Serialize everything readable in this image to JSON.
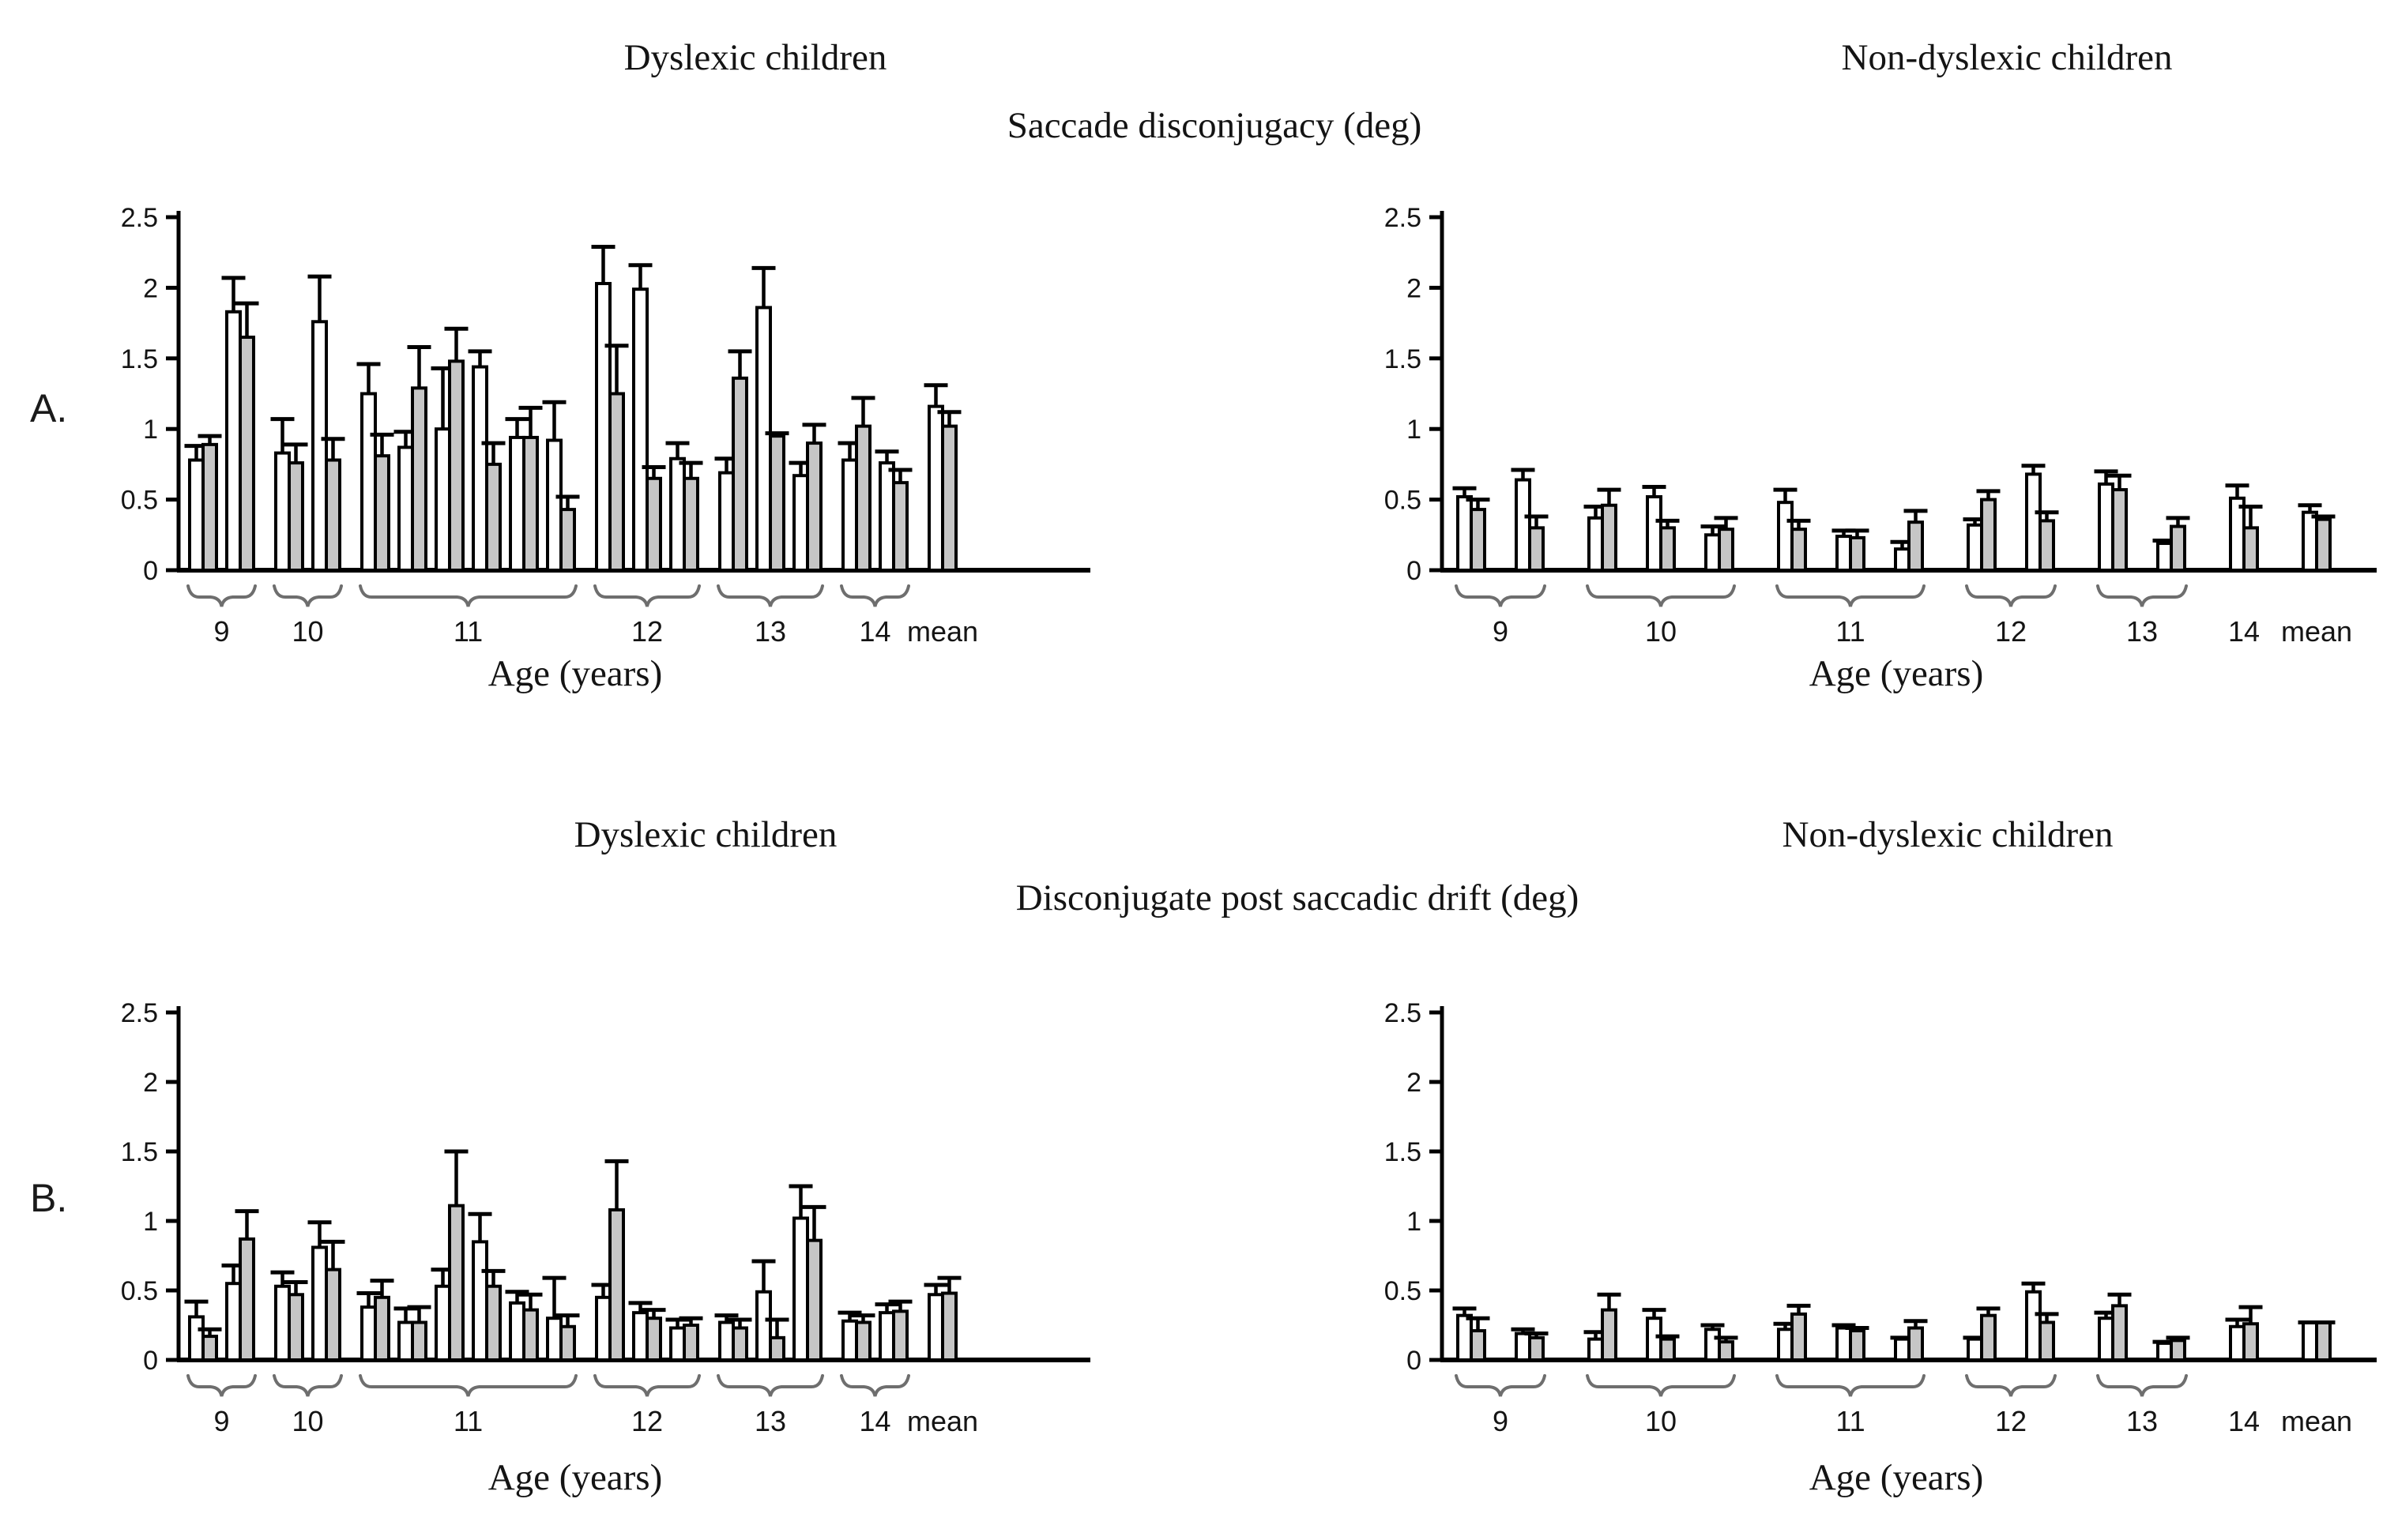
{
  "titles": {
    "panel_a": "A.",
    "panel_b": "B.",
    "row_a_left": "Dyslexic children",
    "row_a_measure": "Saccade disconjugacy (deg)",
    "row_a_right": "Non-dyslexic children",
    "row_b_left": "Dyslexic children",
    "row_b_measure": "Disconjugate post saccadic drift (deg)",
    "row_b_right": "Non-dyslexic children"
  },
  "colors": {
    "bar_white": "#ffffff",
    "bar_gray": "#c6c6c6",
    "stroke": "#000000",
    "brace": "#6e6e6e",
    "text": "#141414"
  },
  "chart_data": [
    {
      "id": "saccade-disconjugacy-dyslexic",
      "type": "bar",
      "row": "A",
      "side": "left",
      "title": "Dyslexic children",
      "measure": "Saccade disconjugacy (deg)",
      "xlabel": "Age (years)",
      "ylim": [
        0,
        2.5
      ],
      "yticks": [
        "0",
        "0.5",
        "1",
        "1.5",
        "2",
        "2.5"
      ],
      "pair_format": "[white_value, white_err, gray_value, gray_err] (deg)",
      "groups": [
        {
          "label": "9",
          "brace": true,
          "pairs": [
            [
              0.78,
              0.1,
              0.89,
              0.06
            ],
            [
              1.83,
              0.24,
              1.65,
              0.24
            ]
          ]
        },
        {
          "label": "10",
          "brace": true,
          "pairs": [
            [
              0.83,
              0.24,
              0.76,
              0.13
            ],
            [
              1.76,
              0.32,
              0.78,
              0.15
            ]
          ]
        },
        {
          "label": "11",
          "brace": true,
          "pairs": [
            [
              1.25,
              0.21,
              0.81,
              0.15
            ],
            [
              0.87,
              0.11,
              1.29,
              0.29
            ],
            [
              1.0,
              0.43,
              1.48,
              0.23
            ],
            [
              1.44,
              0.11,
              0.75,
              0.15
            ],
            [
              0.94,
              0.13,
              0.94,
              0.21
            ],
            [
              0.92,
              0.27,
              0.43,
              0.09
            ]
          ]
        },
        {
          "label": "12",
          "brace": true,
          "pairs": [
            [
              2.03,
              0.26,
              1.25,
              0.34
            ],
            [
              1.99,
              0.17,
              0.65,
              0.08
            ],
            [
              0.79,
              0.11,
              0.65,
              0.11
            ]
          ]
        },
        {
          "label": "13",
          "brace": true,
          "pairs": [
            [
              0.69,
              0.1,
              1.36,
              0.19
            ],
            [
              1.86,
              0.28,
              0.95,
              0.02
            ],
            [
              0.67,
              0.09,
              0.9,
              0.13
            ]
          ]
        },
        {
          "label": "14",
          "brace": true,
          "pairs": [
            [
              0.78,
              0.12,
              1.02,
              0.2
            ],
            [
              0.76,
              0.08,
              0.62,
              0.09
            ]
          ]
        },
        {
          "label": "mean",
          "brace": false,
          "pairs": [
            [
              1.16,
              0.15,
              1.02,
              0.1
            ]
          ]
        }
      ]
    },
    {
      "id": "saccade-disconjugacy-nondyslexic",
      "type": "bar",
      "row": "A",
      "side": "right",
      "title": "Non-dyslexic children",
      "measure": "Saccade disconjugacy (deg)",
      "xlabel": "Age (years)",
      "ylim": [
        0,
        2.5
      ],
      "yticks": [
        "0",
        "0.5",
        "1",
        "1.5",
        "2",
        "2.5"
      ],
      "pair_format": "[white_value, white_err, gray_value, gray_err] (deg)",
      "groups": [
        {
          "label": "9",
          "brace": true,
          "pairs": [
            [
              0.52,
              0.06,
              0.43,
              0.07
            ],
            [
              0.64,
              0.07,
              0.3,
              0.08
            ]
          ]
        },
        {
          "label": "10",
          "brace": true,
          "pairs": [
            [
              0.37,
              0.08,
              0.46,
              0.11
            ],
            [
              0.52,
              0.07,
              0.3,
              0.05
            ],
            [
              0.25,
              0.06,
              0.29,
              0.08
            ]
          ]
        },
        {
          "label": "11",
          "brace": true,
          "pairs": [
            [
              0.48,
              0.09,
              0.29,
              0.06
            ],
            [
              0.24,
              0.04,
              0.23,
              0.05
            ],
            [
              0.15,
              0.05,
              0.34,
              0.08
            ]
          ]
        },
        {
          "label": "12",
          "brace": true,
          "pairs": [
            [
              0.32,
              0.04,
              0.5,
              0.06
            ],
            [
              0.68,
              0.06,
              0.35,
              0.06
            ]
          ]
        },
        {
          "label": "13",
          "brace": true,
          "pairs": [
            [
              0.61,
              0.09,
              0.57,
              0.1
            ],
            [
              0.19,
              0.02,
              0.31,
              0.06
            ]
          ]
        },
        {
          "label": "14",
          "brace": false,
          "pairs": [
            [
              0.51,
              0.09,
              0.3,
              0.15
            ]
          ]
        },
        {
          "label": "mean",
          "brace": false,
          "pairs": [
            [
              0.41,
              0.05,
              0.36,
              0.02
            ]
          ]
        }
      ]
    },
    {
      "id": "postsaccadic-drift-dyslexic",
      "type": "bar",
      "row": "B",
      "side": "left",
      "title": "Dyslexic children",
      "measure": "Disconjugate post saccadic drift (deg)",
      "xlabel": "Age (years)",
      "ylim": [
        0,
        2.5
      ],
      "yticks": [
        "0",
        "0.5",
        "1",
        "1.5",
        "2",
        "2.5"
      ],
      "pair_format": "[white_value, white_err, gray_value, gray_err] (deg)",
      "groups": [
        {
          "label": "9",
          "brace": true,
          "pairs": [
            [
              0.31,
              0.11,
              0.17,
              0.05
            ],
            [
              0.55,
              0.13,
              0.87,
              0.2
            ]
          ]
        },
        {
          "label": "10",
          "brace": true,
          "pairs": [
            [
              0.53,
              0.1,
              0.47,
              0.09
            ],
            [
              0.81,
              0.18,
              0.65,
              0.2
            ]
          ]
        },
        {
          "label": "11",
          "brace": true,
          "pairs": [
            [
              0.38,
              0.1,
              0.45,
              0.12
            ],
            [
              0.27,
              0.1,
              0.27,
              0.11
            ],
            [
              0.53,
              0.12,
              1.11,
              0.39
            ],
            [
              0.85,
              0.2,
              0.53,
              0.11
            ],
            [
              0.41,
              0.08,
              0.36,
              0.11
            ],
            [
              0.3,
              0.29,
              0.24,
              0.08
            ]
          ]
        },
        {
          "label": "12",
          "brace": true,
          "pairs": [
            [
              0.45,
              0.09,
              1.08,
              0.35
            ],
            [
              0.34,
              0.07,
              0.3,
              0.06
            ],
            [
              0.23,
              0.06,
              0.25,
              0.05
            ]
          ]
        },
        {
          "label": "13",
          "brace": true,
          "pairs": [
            [
              0.27,
              0.05,
              0.23,
              0.06
            ],
            [
              0.49,
              0.22,
              0.16,
              0.13
            ],
            [
              1.02,
              0.23,
              0.86,
              0.24
            ]
          ]
        },
        {
          "label": "14",
          "brace": true,
          "pairs": [
            [
              0.28,
              0.06,
              0.27,
              0.05
            ],
            [
              0.34,
              0.06,
              0.35,
              0.07
            ]
          ]
        },
        {
          "label": "mean",
          "brace": false,
          "pairs": [
            [
              0.47,
              0.07,
              0.48,
              0.11
            ]
          ]
        }
      ]
    },
    {
      "id": "postsaccadic-drift-nondyslexic",
      "type": "bar",
      "row": "B",
      "side": "right",
      "title": "Non-dyslexic children",
      "measure": "Disconjugate post saccadic drift (deg)",
      "xlabel": "Age (years)",
      "ylim": [
        0,
        2.5
      ],
      "yticks": [
        "0",
        "0.5",
        "1",
        "1.5",
        "2",
        "2.5"
      ],
      "pair_format": "[white_value, white_err, gray_value, gray_err] (deg)",
      "groups": [
        {
          "label": "9",
          "brace": true,
          "pairs": [
            [
              0.32,
              0.05,
              0.21,
              0.09
            ],
            [
              0.19,
              0.03,
              0.16,
              0.03
            ]
          ]
        },
        {
          "label": "10",
          "brace": true,
          "pairs": [
            [
              0.15,
              0.05,
              0.36,
              0.11
            ],
            [
              0.3,
              0.06,
              0.15,
              0.02
            ],
            [
              0.22,
              0.03,
              0.13,
              0.03
            ]
          ]
        },
        {
          "label": "11",
          "brace": true,
          "pairs": [
            [
              0.22,
              0.04,
              0.33,
              0.06
            ],
            [
              0.23,
              0.02,
              0.21,
              0.02
            ],
            [
              0.15,
              0.01,
              0.23,
              0.05
            ]
          ]
        },
        {
          "label": "12",
          "brace": true,
          "pairs": [
            [
              0.15,
              0.01,
              0.32,
              0.05
            ],
            [
              0.49,
              0.06,
              0.27,
              0.06
            ]
          ]
        },
        {
          "label": "13",
          "brace": true,
          "pairs": [
            [
              0.3,
              0.04,
              0.39,
              0.08
            ],
            [
              0.12,
              0.01,
              0.14,
              0.02
            ]
          ]
        },
        {
          "label": "14",
          "brace": false,
          "pairs": [
            [
              0.24,
              0.05,
              0.26,
              0.12
            ]
          ]
        },
        {
          "label": "mean",
          "brace": false,
          "pairs": [
            [
              0.27,
              0.0,
              0.27,
              0.0
            ]
          ]
        }
      ]
    }
  ]
}
